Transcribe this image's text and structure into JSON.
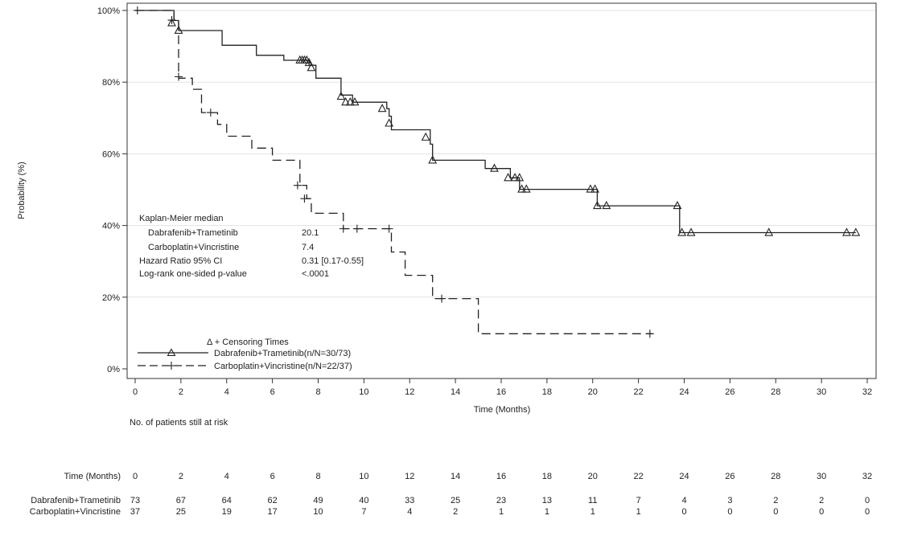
{
  "chart_data": {
    "type": "line",
    "subtype": "kaplan-meier",
    "title": "",
    "xlabel": "Time (Months)",
    "ylabel": "Probability (%)",
    "xlim": [
      0,
      32
    ],
    "ylim": [
      0,
      100
    ],
    "x_ticks": [
      0,
      2,
      4,
      6,
      8,
      10,
      12,
      14,
      16,
      18,
      20,
      22,
      24,
      26,
      28,
      30,
      32
    ],
    "y_ticks": [
      0,
      20,
      40,
      60,
      80,
      100
    ],
    "y_tick_labels": [
      "0%",
      "20%",
      "40%",
      "60%",
      "80%",
      "100%"
    ],
    "grid": "horizontal",
    "series": [
      {
        "name": "Dabrafenib+Trametinib(n/N=30/73)",
        "line_style": "solid",
        "censor_marker": "triangle",
        "steps": [
          [
            0,
            100
          ],
          [
            1.7,
            97.2
          ],
          [
            1.9,
            94.4
          ],
          [
            3.8,
            90.3
          ],
          [
            5.3,
            87.5
          ],
          [
            6.5,
            86.1
          ],
          [
            7.6,
            84.7
          ],
          [
            7.9,
            81.1
          ],
          [
            9.0,
            76.4
          ],
          [
            9.5,
            74.4
          ],
          [
            11.0,
            72.6
          ],
          [
            11.1,
            70.5
          ],
          [
            11.2,
            66.7
          ],
          [
            12.9,
            62.7
          ],
          [
            13.0,
            58.2
          ],
          [
            15.3,
            55.9
          ],
          [
            16.4,
            53.3
          ],
          [
            16.8,
            50.1
          ],
          [
            20.2,
            45.5
          ],
          [
            23.8,
            38.0
          ],
          [
            31.5,
            38.0
          ]
        ],
        "censored": [
          [
            1.6,
            96.5
          ],
          [
            1.9,
            94.4
          ],
          [
            7.2,
            86.1
          ],
          [
            7.3,
            86.1
          ],
          [
            7.4,
            86.1
          ],
          [
            7.5,
            86.1
          ],
          [
            7.6,
            85.4
          ],
          [
            7.7,
            84.0
          ],
          [
            9.0,
            76.0
          ],
          [
            9.2,
            74.4
          ],
          [
            9.4,
            74.4
          ],
          [
            9.6,
            74.4
          ],
          [
            10.8,
            72.6
          ],
          [
            11.1,
            68.5
          ],
          [
            12.7,
            64.6
          ],
          [
            13.0,
            58.2
          ],
          [
            15.7,
            55.9
          ],
          [
            16.3,
            53.3
          ],
          [
            16.6,
            53.3
          ],
          [
            16.8,
            53.3
          ],
          [
            16.9,
            50.1
          ],
          [
            17.1,
            50.1
          ],
          [
            19.9,
            50.1
          ],
          [
            20.1,
            50.1
          ],
          [
            20.2,
            45.5
          ],
          [
            20.6,
            45.5
          ],
          [
            23.7,
            45.5
          ],
          [
            23.9,
            38.0
          ],
          [
            24.3,
            38.0
          ],
          [
            27.7,
            38.0
          ],
          [
            31.1,
            38.0
          ],
          [
            31.5,
            38.0
          ]
        ]
      },
      {
        "name": "Carboplatin+Vincristine(n/N=22/37)",
        "line_style": "dashed",
        "censor_marker": "plus",
        "steps": [
          [
            0,
            100
          ],
          [
            1.7,
            97.3
          ],
          [
            1.9,
            81.1
          ],
          [
            2.5,
            78.0
          ],
          [
            2.9,
            71.5
          ],
          [
            3.6,
            68.2
          ],
          [
            4.0,
            64.9
          ],
          [
            5.1,
            61.6
          ],
          [
            6.0,
            58.2
          ],
          [
            7.2,
            51.2
          ],
          [
            7.5,
            47.5
          ],
          [
            7.7,
            43.4
          ],
          [
            9.1,
            39.1
          ],
          [
            11.2,
            32.6
          ],
          [
            11.8,
            26.1
          ],
          [
            13.0,
            19.6
          ],
          [
            15.0,
            9.8
          ],
          [
            22.6,
            9.8
          ]
        ],
        "censored": [
          [
            0.1,
            100
          ],
          [
            1.6,
            97.3
          ],
          [
            1.9,
            81.5
          ],
          [
            3.3,
            71.5
          ],
          [
            7.1,
            51.2
          ],
          [
            7.4,
            47.5
          ],
          [
            9.1,
            39.1
          ],
          [
            9.7,
            39.1
          ],
          [
            11.1,
            39.1
          ],
          [
            13.4,
            19.6
          ],
          [
            22.5,
            9.8
          ]
        ]
      }
    ],
    "legend": {
      "title": "Δ + Censoring Times",
      "placement": "bottom-left",
      "entries": [
        "Dabrafenib+Trametinib(n/N=30/73)",
        "Carboplatin+Vincristine(n/N=22/37)"
      ]
    },
    "stats": {
      "header": "Kaplan-Meier median",
      "rows": [
        {
          "label": "Dabrafenib+Trametinib",
          "value": "20.1"
        },
        {
          "label": "Carboplatin+Vincristine",
          "value": "7.4"
        },
        {
          "label": "Hazard Ratio 95% CI",
          "value": "0.31 [0.17-0.55]"
        },
        {
          "label": "Log-rank one-sided p-value",
          "value": "<.0001"
        }
      ]
    },
    "risk_table": {
      "title": "No. of patients still at risk",
      "time_label": "Time (Months)",
      "times": [
        "0",
        "2",
        "4",
        "6",
        "8",
        "10",
        "12",
        "14",
        "16",
        "18",
        "20",
        "22",
        "24",
        "26",
        "28",
        "30",
        "32"
      ],
      "rows": [
        {
          "label": "Dabrafenib+Trametinib",
          "values": [
            "73",
            "67",
            "64",
            "62",
            "49",
            "40",
            "33",
            "25",
            "23",
            "13",
            "11",
            "7",
            "4",
            "3",
            "2",
            "2",
            "0"
          ]
        },
        {
          "label": "Carboplatin+Vincristine",
          "values": [
            "37",
            "25",
            "19",
            "17",
            "10",
            "7",
            "4",
            "2",
            "1",
            "1",
            "1",
            "1",
            "0",
            "0",
            "0",
            "0",
            "0"
          ]
        }
      ]
    }
  }
}
